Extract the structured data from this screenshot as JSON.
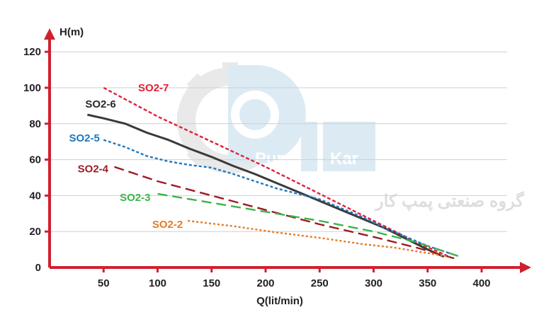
{
  "chart_data": {
    "type": "line",
    "title": "",
    "xlabel": "Q(lit/min)",
    "ylabel": "H(m)",
    "xlim": [
      0,
      400
    ],
    "ylim": [
      0,
      120
    ],
    "xticks": [
      50,
      100,
      150,
      200,
      250,
      300,
      350,
      400
    ],
    "yticks": [
      0,
      20,
      40,
      60,
      80,
      100,
      120
    ],
    "grid": "horizontal",
    "legend": "inline-labels",
    "watermark": {
      "brand_left": "Pump",
      "brand_right": "Kar",
      "tagline": "گروه صنعتی پمپ کار"
    },
    "series": [
      {
        "name": "SO2-7",
        "color": "#e41f3a",
        "dash": "5,3",
        "x": [
          50,
          100,
          150,
          200,
          250,
          300,
          340,
          370
        ],
        "y": [
          100,
          84,
          70,
          56,
          41,
          26,
          14,
          6
        ]
      },
      {
        "name": "SO2-6",
        "color": "#3a3a3a",
        "dash": "",
        "x": [
          35,
          50,
          70,
          90,
          110,
          130,
          150,
          170,
          190,
          210,
          230,
          250,
          270,
          290,
          310,
          330,
          350,
          365
        ],
        "y": [
          85,
          83,
          80,
          75,
          71,
          66,
          61.5,
          56.5,
          52,
          47,
          42,
          37,
          32,
          27,
          22,
          16,
          10,
          6
        ]
      },
      {
        "name": "SO2-5",
        "color": "#1f77bf",
        "dash": "4,3",
        "x": [
          50,
          70,
          90,
          110,
          130,
          150,
          170,
          190,
          210,
          230,
          250,
          270,
          290,
          310,
          330,
          350,
          370
        ],
        "y": [
          71,
          67,
          62,
          59,
          57,
          55.5,
          52,
          48,
          44,
          41,
          38,
          33,
          28,
          22,
          17,
          12,
          8
        ]
      },
      {
        "name": "SO2-4",
        "color": "#9e1b24",
        "dash": "14,7",
        "x": [
          60,
          100,
          150,
          200,
          250,
          300,
          340,
          375
        ],
        "y": [
          56,
          48,
          40,
          32,
          24,
          17,
          11,
          5
        ]
      },
      {
        "name": "SO2-3",
        "color": "#3cb44b",
        "dash": "14,7",
        "x": [
          100,
          150,
          200,
          250,
          300,
          340,
          380
        ],
        "y": [
          41,
          36,
          31,
          26,
          20,
          14,
          6
        ]
      },
      {
        "name": "SO2-2",
        "color": "#e47b22",
        "dash": "3,3",
        "x": [
          128,
          170,
          210,
          250,
          290,
          320,
          350,
          370
        ],
        "y": [
          26,
          23,
          19.5,
          16.5,
          13,
          11,
          8,
          6
        ]
      }
    ],
    "label_positions": [
      {
        "name": "SO2-7",
        "x": 82,
        "y": 98
      },
      {
        "name": "SO2-6",
        "x": 33,
        "y": 89
      },
      {
        "name": "SO2-5",
        "x": 18,
        "y": 70
      },
      {
        "name": "SO2-4",
        "x": 26,
        "y": 53
      },
      {
        "name": "SO2-3",
        "x": 65,
        "y": 37
      },
      {
        "name": "SO2-2",
        "x": 95,
        "y": 22
      }
    ]
  }
}
